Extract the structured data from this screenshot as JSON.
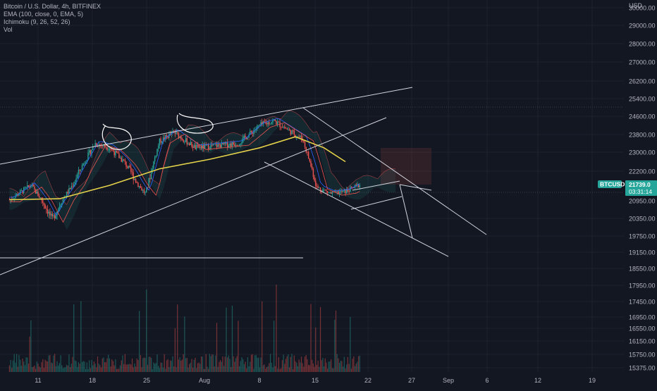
{
  "header": {
    "title": "Bitcoin / U.S. Dollar, 4h, BITFINEX",
    "indicators": [
      "EMA (100, close, 0, EMA, 5)",
      "Ichimoku (9, 26, 52, 26)",
      "Vol"
    ]
  },
  "colors": {
    "background": "#131722",
    "grid": "#1e222d",
    "up": "#26a69a",
    "down": "#ef5350",
    "ema": "#e3d24a",
    "trendline": "#d1d4dc",
    "price_tag": "#26a69a"
  },
  "chart_data": {
    "type": "candlestick",
    "title": "Bitcoin / U.S. Dollar, 4h, BITFINEX",
    "currency": "USD",
    "price_ticks": [
      30000,
      29000,
      28000,
      27000,
      26200,
      25400,
      24600,
      23800,
      23000,
      22200,
      21739,
      20950,
      20350,
      19750,
      19150,
      18550,
      17950,
      17450,
      16950,
      16550,
      16150,
      15750,
      15375
    ],
    "x_ticks": [
      "11",
      "18",
      "25",
      "Aug",
      "8",
      "15",
      "22",
      "27",
      "Sep",
      "6",
      "12",
      "19"
    ],
    "price_path": {
      "dates": [
        "Jul 7",
        "Jul 10",
        "Jul 13",
        "Jul 16",
        "Jul 19",
        "Jul 21",
        "Jul 23",
        "Jul 26",
        "Jul 28",
        "Jul 30",
        "Aug 2",
        "Aug 5",
        "Aug 8",
        "Aug 11",
        "Aug 13",
        "Aug 15",
        "Aug 17",
        "Aug 19",
        "Aug 21",
        "Aug 23",
        "Aug 25"
      ],
      "close": [
        21000,
        21700,
        20300,
        21800,
        23400,
        23200,
        22600,
        21300,
        23500,
        23900,
        23200,
        23300,
        23400,
        24200,
        24400,
        24000,
        23600,
        21600,
        21300,
        21400,
        21739
      ]
    },
    "ema_100": {
      "dates": [
        "Jul 7",
        "Jul 14",
        "Jul 21",
        "Jul 28",
        "Aug 4",
        "Aug 11",
        "Aug 16",
        "Aug 20",
        "Aug 23"
      ],
      "values": [
        21000,
        21050,
        21700,
        22300,
        22700,
        23200,
        23700,
        23200,
        22600
      ]
    },
    "last_price": {
      "symbol": "BTCUSD",
      "price": "21739.0",
      "countdown": "03:31:14"
    },
    "ylim": [
      15375,
      30000
    ],
    "grid": true,
    "legend": "top-left"
  }
}
